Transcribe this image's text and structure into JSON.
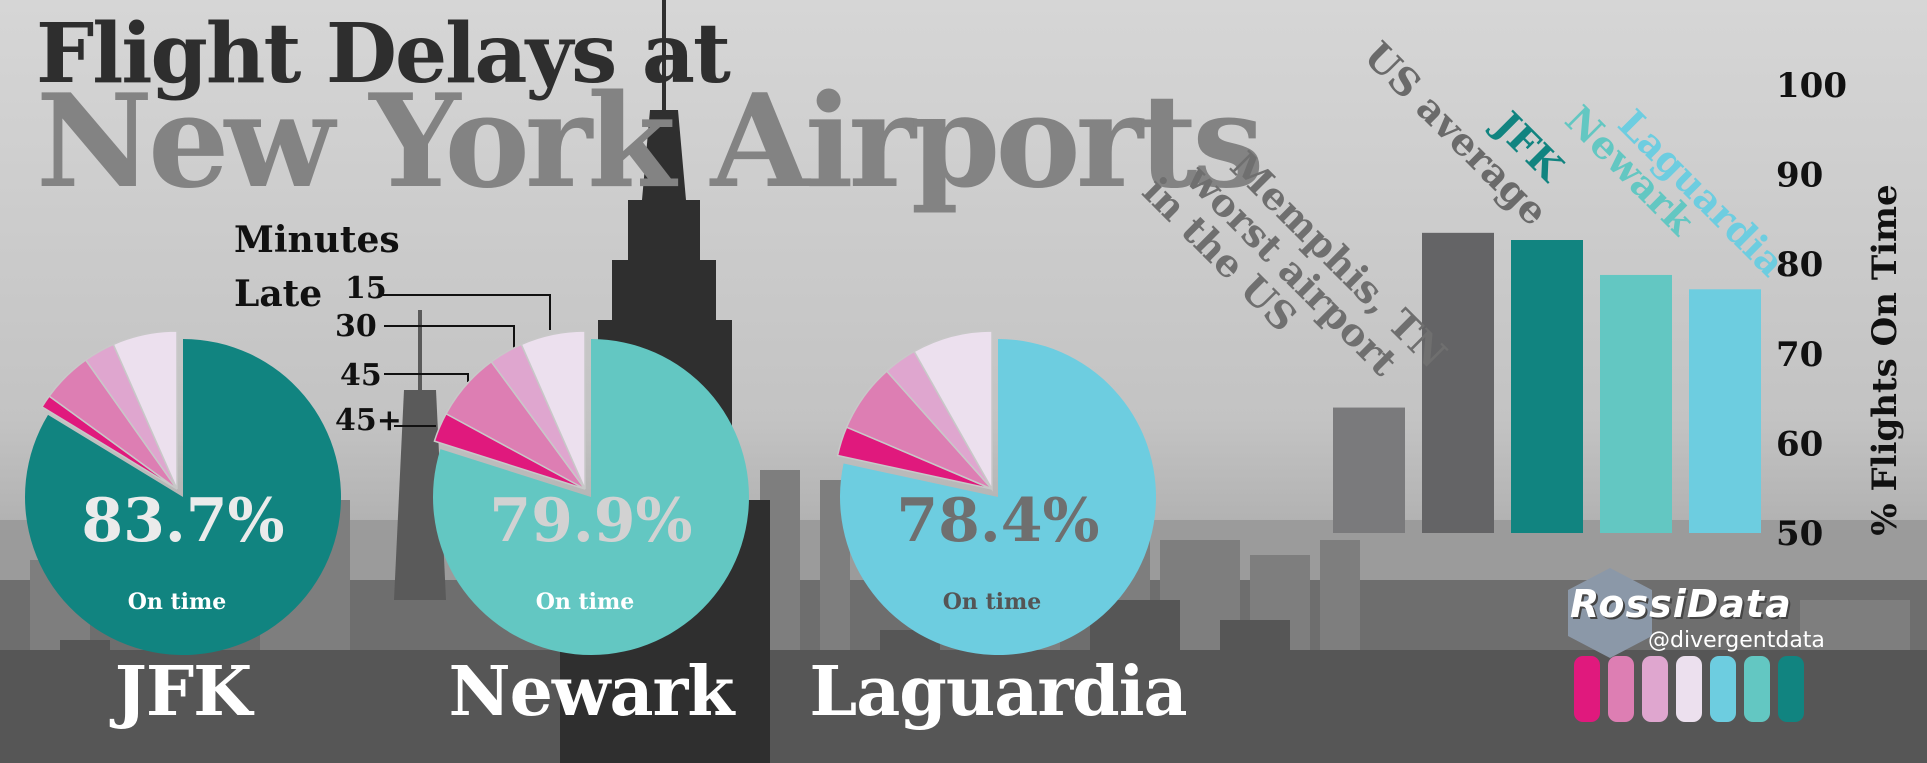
{
  "title": {
    "line1": "Flight Delays at",
    "line2": "New York Airports"
  },
  "legend": {
    "heading_line1": "Minutes",
    "heading_line2": "Late",
    "items": [
      {
        "label": "15",
        "color": "#ece0ee"
      },
      {
        "label": "30",
        "color": "#dfa6cf"
      },
      {
        "label": "45",
        "color": "#dd7eb3"
      },
      {
        "label": "45+",
        "color": "#e0197d"
      }
    ]
  },
  "logo": {
    "name": "RossiData",
    "handle": "@divergentdata",
    "swatches": [
      "#e0197d",
      "#dd7eb3",
      "#dfa6cf",
      "#ece0ee",
      "#6dcde0",
      "#63c7c2",
      "#118480"
    ]
  },
  "chart_data": [
    {
      "type": "pie",
      "name": "JFK",
      "center_label": "83.7%",
      "center_sublabel": "On time",
      "on_time": 83.7,
      "on_time_color": "#118480",
      "pct_color": "#ebebeb",
      "slices": [
        {
          "label": "On time",
          "value": 83.7
        },
        {
          "label": "45+",
          "value": 1.3
        },
        {
          "label": "45",
          "value": 5.2
        },
        {
          "label": "30",
          "value": 3.2
        },
        {
          "label": "15",
          "value": 6.6
        }
      ]
    },
    {
      "type": "pie",
      "name": "Newark",
      "center_label": "79.9%",
      "center_sublabel": "On time",
      "on_time": 79.9,
      "on_time_color": "#63c7c2",
      "pct_color": "#d2d2d2",
      "slices": [
        {
          "label": "On time",
          "value": 79.9
        },
        {
          "label": "45+",
          "value": 3.0
        },
        {
          "label": "45",
          "value": 7.0
        },
        {
          "label": "30",
          "value": 3.5
        },
        {
          "label": "15",
          "value": 6.6
        }
      ]
    },
    {
      "type": "pie",
      "name": "Laguardia",
      "center_label": "78.4%",
      "center_sublabel": "On time",
      "on_time": 78.4,
      "on_time_color": "#6dcde0",
      "pct_color": "#6f6f6f",
      "slices": [
        {
          "label": "On time",
          "value": 78.4
        },
        {
          "label": "45+",
          "value": 3.0
        },
        {
          "label": "45",
          "value": 7.0
        },
        {
          "label": "30",
          "value": 3.4
        },
        {
          "label": "15",
          "value": 8.2
        }
      ]
    },
    {
      "type": "bar",
      "categories": [
        "Memphis, TN worst airport in the US",
        "US average",
        "JFK",
        "Newark",
        "Laguardia"
      ],
      "values": [
        64,
        83.5,
        82.7,
        78.8,
        77.2
      ],
      "colors": [
        "#7a7a7c",
        "#646466",
        "#118480",
        "#63c7c2",
        "#6dcde0"
      ],
      "label_colors": [
        "#6f6f6f",
        "#6a6a6a",
        "#118480",
        "#63c7c2",
        "#6dcde0"
      ],
      "ylabel": "% Flights On Time",
      "ylim": [
        50,
        100
      ],
      "yticks": [
        50,
        60,
        70,
        80,
        90,
        100
      ],
      "axis_side": "right"
    }
  ]
}
